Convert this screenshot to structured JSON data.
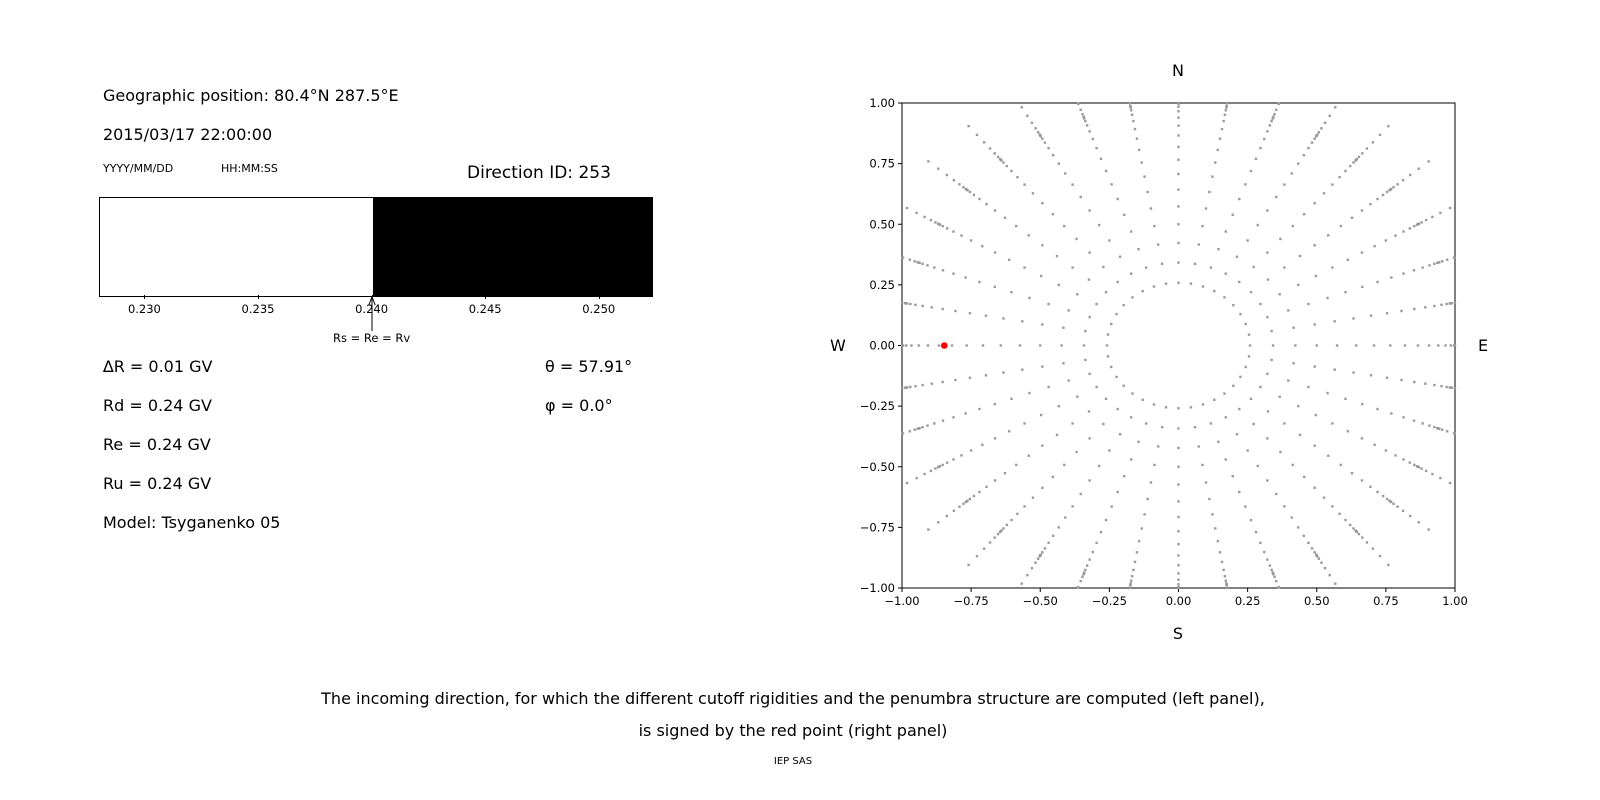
{
  "left_panel": {
    "geo_position": "Geographic position: 80.4°N 287.5°E",
    "datetime": "2015/03/17 22:00:00",
    "date_format_label": "YYYY/MM/DD",
    "time_format_label": "HH:MM:SS",
    "direction_id": "Direction ID: 253",
    "info_lines": [
      "∆R = 0.01 GV",
      "Rd = 0.24 GV",
      "Re = 0.24 GV",
      "Ru = 0.24 GV",
      "Model: Tsyganenko 05"
    ],
    "theta": "θ = 57.91°",
    "phi": "φ = 0.0°"
  },
  "caption": {
    "line1": "The incoming direction, for which the different cutoff rigidities and the penumbra structure are computed (left panel),",
    "line2": "is signed by the red point (right panel)"
  },
  "footer": "IEP SAS",
  "chart_data": [
    {
      "type": "bar",
      "name": "penumbra-structure-strip",
      "description": "Penumbra structure: white region = allowed rigidities below Rs, black region = forbidden rigidities above Rs",
      "xlim": [
        0.228,
        0.2523
      ],
      "x_ticks": [
        {
          "value": 0.23,
          "label": "0.230"
        },
        {
          "value": 0.235,
          "label": "0.235"
        },
        {
          "value": 0.24,
          "label": "0.240"
        },
        {
          "value": 0.245,
          "label": "0.245"
        },
        {
          "value": 0.25,
          "label": "0.250"
        }
      ],
      "white_range": [
        0.228,
        0.24
      ],
      "black_range": [
        0.24,
        0.2523
      ],
      "marker": {
        "x": 0.24,
        "label": "Rs = Re = Rv"
      },
      "colors": {
        "allowed": "#ffffff",
        "forbidden": "#000000"
      }
    },
    {
      "type": "scatter",
      "name": "incoming-direction-map",
      "xlim": [
        -1,
        1
      ],
      "ylim": [
        -1,
        1
      ],
      "x_ticks": [
        {
          "value": -1.0,
          "label": "−1.00"
        },
        {
          "value": -0.75,
          "label": "−0.75"
        },
        {
          "value": -0.5,
          "label": "−0.50"
        },
        {
          "value": -0.25,
          "label": "−0.25"
        },
        {
          "value": 0.0,
          "label": "0.00"
        },
        {
          "value": 0.25,
          "label": "0.25"
        },
        {
          "value": 0.5,
          "label": "0.50"
        },
        {
          "value": 0.75,
          "label": "0.75"
        },
        {
          "value": 1.0,
          "label": "1.00"
        }
      ],
      "y_ticks": [
        {
          "value": 1.0,
          "label": "1.00"
        },
        {
          "value": 0.75,
          "label": "0.75"
        },
        {
          "value": 0.5,
          "label": "0.50"
        },
        {
          "value": 0.25,
          "label": "0.25"
        },
        {
          "value": 0.0,
          "label": "0.00"
        },
        {
          "value": -0.25,
          "label": "−0.25"
        },
        {
          "value": -0.5,
          "label": "−0.50"
        },
        {
          "value": -0.75,
          "label": "−0.75"
        },
        {
          "value": -1.0,
          "label": "−1.00"
        }
      ],
      "compass": {
        "top": "N",
        "bottom": "S",
        "left": "W",
        "right": "E"
      },
      "grid": false,
      "gray_points": {
        "pattern": "radial spokes of direction grid points",
        "azimuth_start_deg": 0,
        "azimuth_step_deg": 10,
        "azimuth_count": 36,
        "zenith_start_deg": 15,
        "zenith_step_deg": 5,
        "zenith_end_deg": 125,
        "radius_rule": "r = sin(zenith) for zenith ≤ 90°, r = 2 − sin(zenith) for zenith > 90°",
        "clip_abs": 1.0,
        "marker_size_px": 2.4,
        "color": "#9a9a9a"
      },
      "red_point": {
        "x": -0.847,
        "y": 0.0,
        "color": "#ff0000",
        "radius_px": 3.3,
        "meaning": "selected incoming direction θ = 57.91°, φ = 0.0°"
      }
    }
  ]
}
